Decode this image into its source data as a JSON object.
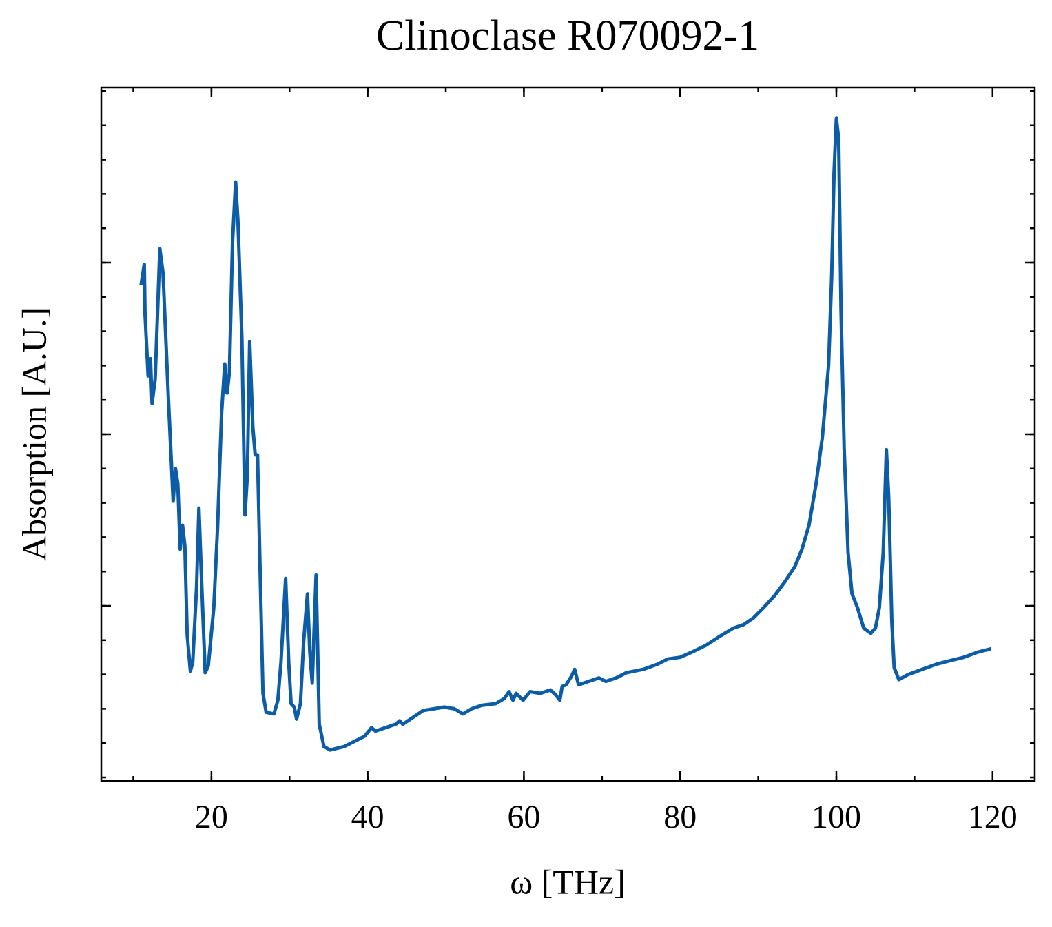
{
  "chart_data": {
    "type": "line",
    "title": "Clinoclase R070092-1",
    "x_label": "ω [THz]",
    "y_label": "Absorption [A.U.]",
    "xlim": [
      5.9,
      125.4
    ],
    "xticks": [
      20,
      40,
      60,
      80,
      100,
      120
    ],
    "ylim": [
      -0.02,
      4.02
    ],
    "yticks": [
      1,
      2,
      3
    ],
    "series": [
      {
        "name": "Clinoclase R070092-1",
        "color": "#0c5da5",
        "x": [
          11.0,
          11.4,
          11.5,
          11.9,
          12.2,
          12.4,
          12.8,
          13.4,
          13.8,
          14.5,
          15.1,
          15.4,
          15.7,
          16.0,
          16.3,
          16.6,
          16.9,
          17.3,
          17.6,
          18.1,
          18.4,
          18.8,
          19.2,
          19.6,
          20.3,
          20.8,
          21.3,
          21.7,
          22.0,
          22.3,
          22.7,
          23.1,
          23.4,
          23.9,
          24.3,
          24.6,
          24.9,
          25.3,
          25.6,
          25.9,
          26.3,
          26.6,
          27.0,
          28.0,
          28.5,
          28.9,
          29.5,
          29.9,
          30.2,
          30.6,
          30.9,
          31.4,
          31.8,
          32.3,
          32.6,
          32.9,
          33.4,
          33.8,
          34.4,
          35.2,
          37.0,
          38.3,
          39.6,
          40.5,
          41.0,
          42.3,
          43.6,
          44.1,
          44.5,
          45.8,
          47.1,
          48.5,
          49.8,
          51.1,
          52.2,
          53.3,
          54.6,
          56.4,
          57.5,
          58.1,
          58.6,
          59.0,
          59.9,
          60.8,
          62.1,
          63.4,
          64.1,
          64.6,
          64.9,
          65.4,
          66.1,
          66.5,
          67.0,
          68.3,
          69.6,
          70.5,
          71.8,
          73.1,
          75.3,
          77.1,
          78.4,
          80.0,
          81.5,
          83.3,
          85.0,
          86.8,
          88.1,
          89.4,
          90.7,
          92.1,
          93.4,
          94.7,
          95.6,
          96.5,
          97.4,
          98.2,
          99.0,
          99.4,
          99.7,
          100.0,
          100.3,
          100.6,
          101.0,
          101.5,
          102.0,
          102.7,
          103.5,
          104.4,
          105.0,
          105.5,
          106.0,
          106.4,
          106.7,
          107.1,
          107.4,
          108.0,
          109.2,
          111.0,
          112.8,
          114.5,
          116.3,
          118.1,
          119.8
        ],
        "values": [
          2.87,
          2.99,
          2.7,
          2.34,
          2.44,
          2.18,
          2.32,
          3.08,
          2.94,
          2.2,
          1.61,
          1.8,
          1.71,
          1.33,
          1.47,
          1.35,
          0.83,
          0.62,
          0.67,
          1.11,
          1.57,
          1.07,
          0.61,
          0.65,
          0.99,
          1.47,
          2.12,
          2.41,
          2.24,
          2.36,
          3.12,
          3.47,
          3.24,
          2.56,
          1.53,
          1.76,
          2.54,
          2.04,
          1.88,
          1.88,
          1.07,
          0.49,
          0.38,
          0.37,
          0.45,
          0.67,
          1.16,
          0.67,
          0.43,
          0.41,
          0.34,
          0.43,
          0.79,
          1.07,
          0.73,
          0.55,
          1.18,
          0.31,
          0.18,
          0.16,
          0.18,
          0.21,
          0.24,
          0.29,
          0.27,
          0.29,
          0.31,
          0.33,
          0.31,
          0.35,
          0.39,
          0.4,
          0.41,
          0.4,
          0.37,
          0.4,
          0.42,
          0.43,
          0.46,
          0.5,
          0.45,
          0.49,
          0.45,
          0.5,
          0.49,
          0.51,
          0.48,
          0.45,
          0.53,
          0.54,
          0.59,
          0.63,
          0.54,
          0.56,
          0.58,
          0.56,
          0.58,
          0.61,
          0.63,
          0.66,
          0.69,
          0.7,
          0.73,
          0.77,
          0.82,
          0.87,
          0.89,
          0.93,
          0.99,
          1.06,
          1.14,
          1.23,
          1.33,
          1.47,
          1.71,
          1.98,
          2.4,
          2.92,
          3.52,
          3.84,
          3.72,
          2.72,
          1.92,
          1.31,
          1.07,
          0.99,
          0.87,
          0.84,
          0.87,
          0.99,
          1.31,
          1.91,
          1.63,
          0.91,
          0.64,
          0.57,
          0.6,
          0.63,
          0.66,
          0.68,
          0.7,
          0.73,
          0.75
        ]
      }
    ]
  }
}
